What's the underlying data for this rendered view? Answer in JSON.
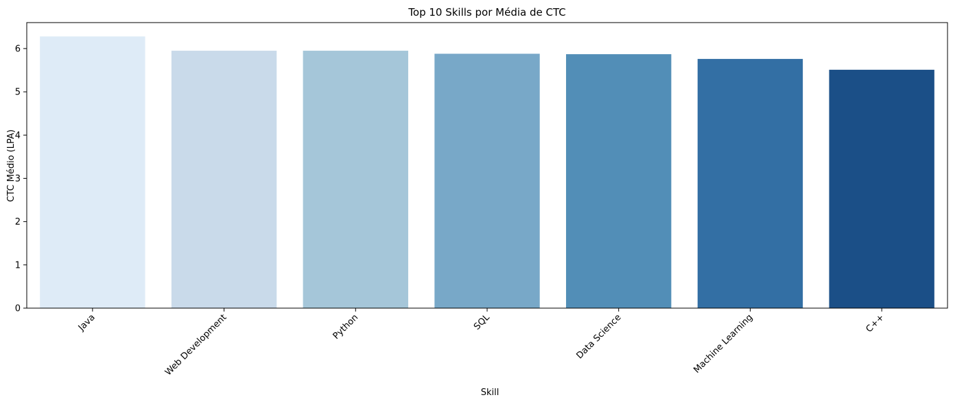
{
  "chart_data": {
    "type": "bar",
    "title": "Top 10 Skills por Média de CTC",
    "xlabel": "Skill",
    "ylabel": "CTC Médio (LPA)",
    "categories": [
      "Java",
      "Web Development",
      "Python",
      "SQL",
      "Data Science",
      "Machine Learning",
      "C++"
    ],
    "values": [
      6.28,
      5.95,
      5.95,
      5.88,
      5.87,
      5.76,
      5.51
    ],
    "ylim": [
      0,
      6.6
    ],
    "yticks": [
      "0",
      "1",
      "2",
      "3",
      "4",
      "5",
      "6"
    ],
    "colors": [
      "#deebf7",
      "#c9daea",
      "#a5c6d9",
      "#78a8c8",
      "#528eb7",
      "#336fa4",
      "#1b4f87"
    ],
    "grid": false,
    "legend": "none"
  }
}
